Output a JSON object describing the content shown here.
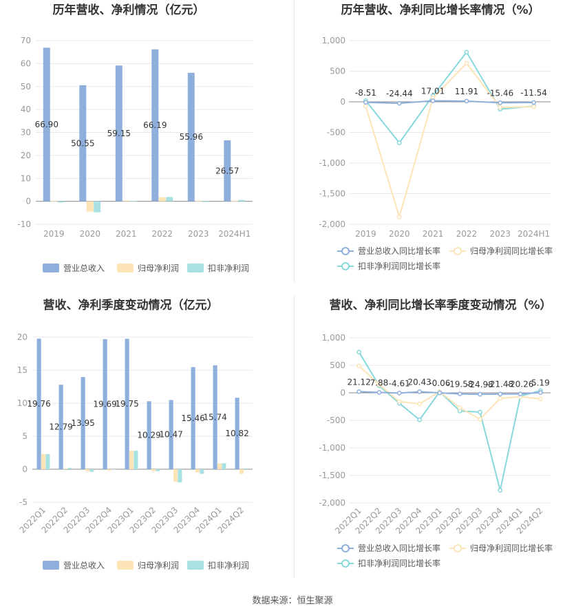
{
  "colors": {
    "revenue": "#8eaedc",
    "net_profit": "#fde4b6",
    "deducted_profit": "#a9e1e2",
    "rev_growth": "#8eaedc",
    "np_growth": "#fde4b6",
    "dp_growth": "#86d8db",
    "grid": "#e9e9e9",
    "axis_text": "#999999",
    "title_text": "#333333"
  },
  "source": "数据来源：恒生聚源",
  "chart_data": [
    {
      "type": "bar",
      "title": "历年营收、净利情况（亿元）",
      "categories": [
        "2019",
        "2020",
        "2021",
        "2022",
        "2023",
        "2024H1"
      ],
      "ylim": [
        -10,
        70
      ],
      "yticks": [
        -10,
        0,
        10,
        20,
        30,
        40,
        50,
        60,
        70
      ],
      "grid": true,
      "legend_position": "bottom",
      "series": [
        {
          "name": "营业总收入",
          "values": [
            66.9,
            50.55,
            59.15,
            66.19,
            55.96,
            26.57
          ],
          "labels": [
            "66.90",
            "50.55",
            "59.15",
            "66.19",
            "55.96",
            "26.57"
          ]
        },
        {
          "name": "归母净利润",
          "values": [
            0.2,
            -4.5,
            0.3,
            1.8,
            0.2,
            0.1
          ]
        },
        {
          "name": "扣非净利润",
          "values": [
            -0.5,
            -4.8,
            0.2,
            1.9,
            -0.3,
            0.6
          ]
        }
      ]
    },
    {
      "type": "line",
      "title": "历年营收、净利同比增长率情况（%）",
      "categories": [
        "2019",
        "2020",
        "2021",
        "2022",
        "2023",
        "2024H1"
      ],
      "ylim": [
        -2000,
        1000
      ],
      "yticks": [
        -2000,
        -1500,
        -1000,
        -500,
        0,
        500,
        1000
      ],
      "ytick_labels": [
        "-2,000",
        "-1,500",
        "-1,000",
        "-500",
        "0",
        "500",
        "1,000"
      ],
      "grid": true,
      "legend_position": "bottom",
      "series": [
        {
          "name": "营业总收入同比增长率",
          "values": [
            -8.51,
            -24.44,
            17.01,
            11.91,
            -15.46,
            -11.54
          ],
          "labels": [
            "-8.51",
            "-24.44",
            "17.01",
            "11.91",
            "-15.46",
            "-11.54"
          ]
        },
        {
          "name": "归母净利润同比增长率",
          "values": [
            -70,
            -1880,
            60,
            630,
            -90,
            -80
          ]
        },
        {
          "name": "扣非净利润同比增长率",
          "values": [
            20,
            -670,
            100,
            810,
            -120,
            -70
          ]
        }
      ]
    },
    {
      "type": "bar",
      "title": "营收、净利季度变动情况（亿元）",
      "categories": [
        "2022Q1",
        "2022Q2",
        "2022Q3",
        "2022Q4",
        "2023Q1",
        "2023Q2",
        "2023Q3",
        "2023Q4",
        "2024Q1",
        "2024Q2"
      ],
      "ylim": [
        -5,
        20
      ],
      "yticks": [
        -5,
        0,
        5,
        10,
        15,
        20
      ],
      "grid": true,
      "legend_position": "bottom",
      "series": [
        {
          "name": "营业总收入",
          "values": [
            19.76,
            12.79,
            13.95,
            19.69,
            19.75,
            10.29,
            10.47,
            15.46,
            15.74,
            10.82
          ],
          "labels": [
            "19.76",
            "12.79",
            "13.95",
            "19.69",
            "19.75",
            "10.29",
            "10.47",
            "15.46",
            "15.74",
            "10.82"
          ]
        },
        {
          "name": "归母净利润",
          "values": [
            2.3,
            0.1,
            -0.3,
            -0.2,
            2.8,
            -0.3,
            -1.9,
            -0.5,
            0.9,
            -0.7
          ]
        },
        {
          "name": "扣非净利润",
          "values": [
            2.3,
            0.2,
            -0.4,
            0.0,
            2.8,
            -0.3,
            -2.0,
            -0.7,
            0.9,
            0.1
          ]
        }
      ]
    },
    {
      "type": "line",
      "title": "营收、净利同比增长率季度变动情况（%）",
      "categories": [
        "2022Q1",
        "2022Q2",
        "2022Q3",
        "2022Q4",
        "2023Q1",
        "2023Q2",
        "2023Q3",
        "2023Q4",
        "2024Q1",
        "2024Q2"
      ],
      "ylim": [
        -2000,
        1000
      ],
      "yticks": [
        -2000,
        -1500,
        -1000,
        -500,
        0,
        500,
        1000
      ],
      "ytick_labels": [
        "-2,000",
        "-1,500",
        "-1,000",
        "-500",
        "0",
        "500",
        "1,000"
      ],
      "grid": true,
      "legend_position": "bottom",
      "series": [
        {
          "name": "营业总收入同比增长率",
          "values": [
            21.12,
            7.88,
            -4.61,
            20.43,
            -0.06,
            -19.58,
            -24.98,
            -21.48,
            -20.26,
            5.19
          ],
          "labels": [
            "21.12",
            "7.88",
            "-4.61",
            "20.43",
            "-0.06",
            "-19.58",
            "-24.98",
            "-21.48",
            "-20.26",
            "5.19"
          ]
        },
        {
          "name": "归母净利润同比增长率",
          "values": [
            490,
            150,
            -160,
            -200,
            20,
            -270,
            -480,
            -100,
            -70,
            -110
          ]
        },
        {
          "name": "扣非净利润同比增长率",
          "values": [
            740,
            130,
            -190,
            -490,
            20,
            -330,
            -350,
            -1770,
            -60,
            40
          ]
        }
      ]
    }
  ]
}
